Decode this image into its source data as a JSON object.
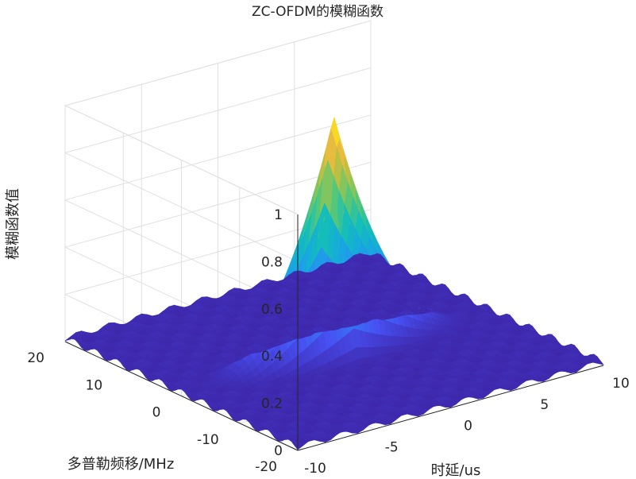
{
  "chart_data": {
    "type": "surface",
    "title": "ZC-OFDM的模糊函数",
    "xlabel": "时延/us",
    "ylabel": "多普勒频移/MHz",
    "zlabel": "模糊函数值",
    "x_ticks": [
      "-10",
      "-5",
      "0",
      "5",
      "10"
    ],
    "y_ticks": [
      "-20",
      "-10",
      "0",
      "10",
      "20"
    ],
    "z_ticks": [
      "0",
      "0.2",
      "0.4",
      "0.6",
      "0.8",
      "1"
    ],
    "xlim": [
      -10,
      10
    ],
    "ylim": [
      -20,
      20
    ],
    "zlim": [
      0,
      1
    ],
    "grid": true,
    "colormap": "parula",
    "peak": {
      "x": 0,
      "y": 0,
      "z": 1
    },
    "sidelobe_level": 0.03
  },
  "colors": {
    "low": "#3e26a8",
    "mid": "#14b5c9",
    "high": "#f9fb0e",
    "grid": "#e0e0e0",
    "axis": "#262626"
  }
}
